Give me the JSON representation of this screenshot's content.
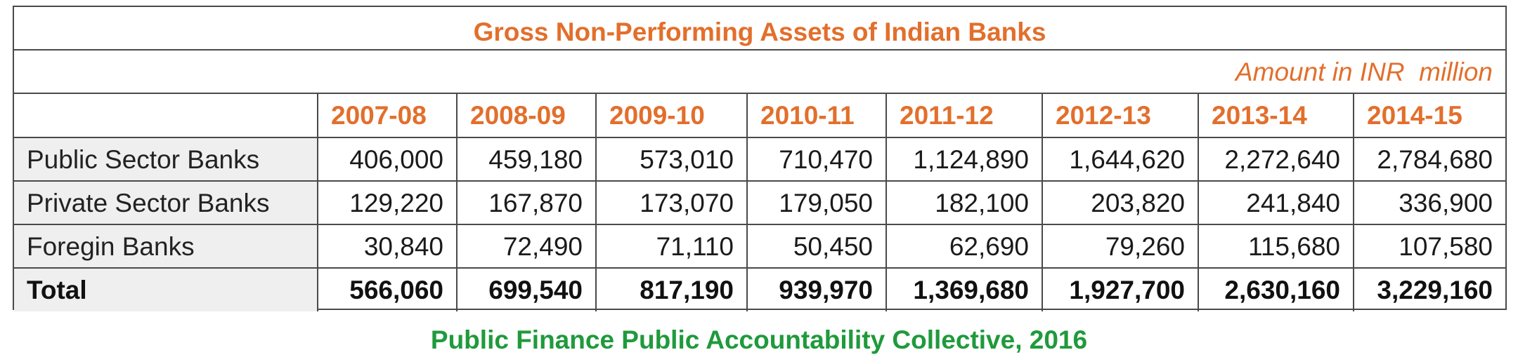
{
  "chart_data": {
    "type": "table",
    "title": "Gross Non-Performing Assets of Indian Banks",
    "unit_note": "Amount in INR  million",
    "columns": [
      "2007-08",
      "2008-09",
      "2009-10",
      "2010-11",
      "2011-12",
      "2012-13",
      "2013-14",
      "2014-15"
    ],
    "rows": [
      {
        "label": "Public Sector Banks",
        "values": [
          "406,000",
          "459,180",
          "573,010",
          "710,470",
          "1,124,890",
          "1,644,620",
          "2,272,640",
          "2,784,680"
        ]
      },
      {
        "label": "Private Sector Banks",
        "values": [
          "129,220",
          "167,870",
          "173,070",
          "179,050",
          "182,100",
          "203,820",
          "241,840",
          "336,900"
        ]
      },
      {
        "label": "Foregin Banks",
        "values": [
          "30,840",
          "72,490",
          "71,110",
          "50,450",
          "62,690",
          "79,260",
          "115,680",
          "107,580"
        ]
      },
      {
        "label": "Total",
        "values": [
          "566,060",
          "699,540",
          "817,190",
          "939,970",
          "1,369,680",
          "1,927,700",
          "2,630,160",
          "3,229,160"
        ]
      }
    ],
    "source": "Public Finance Public Accountability Collective, 2016"
  },
  "colors": {
    "heading_orange": "#e26f2c",
    "source_green": "#1f9a3c",
    "row_label_bg": "#efefef",
    "border": "#4a4a4a"
  }
}
